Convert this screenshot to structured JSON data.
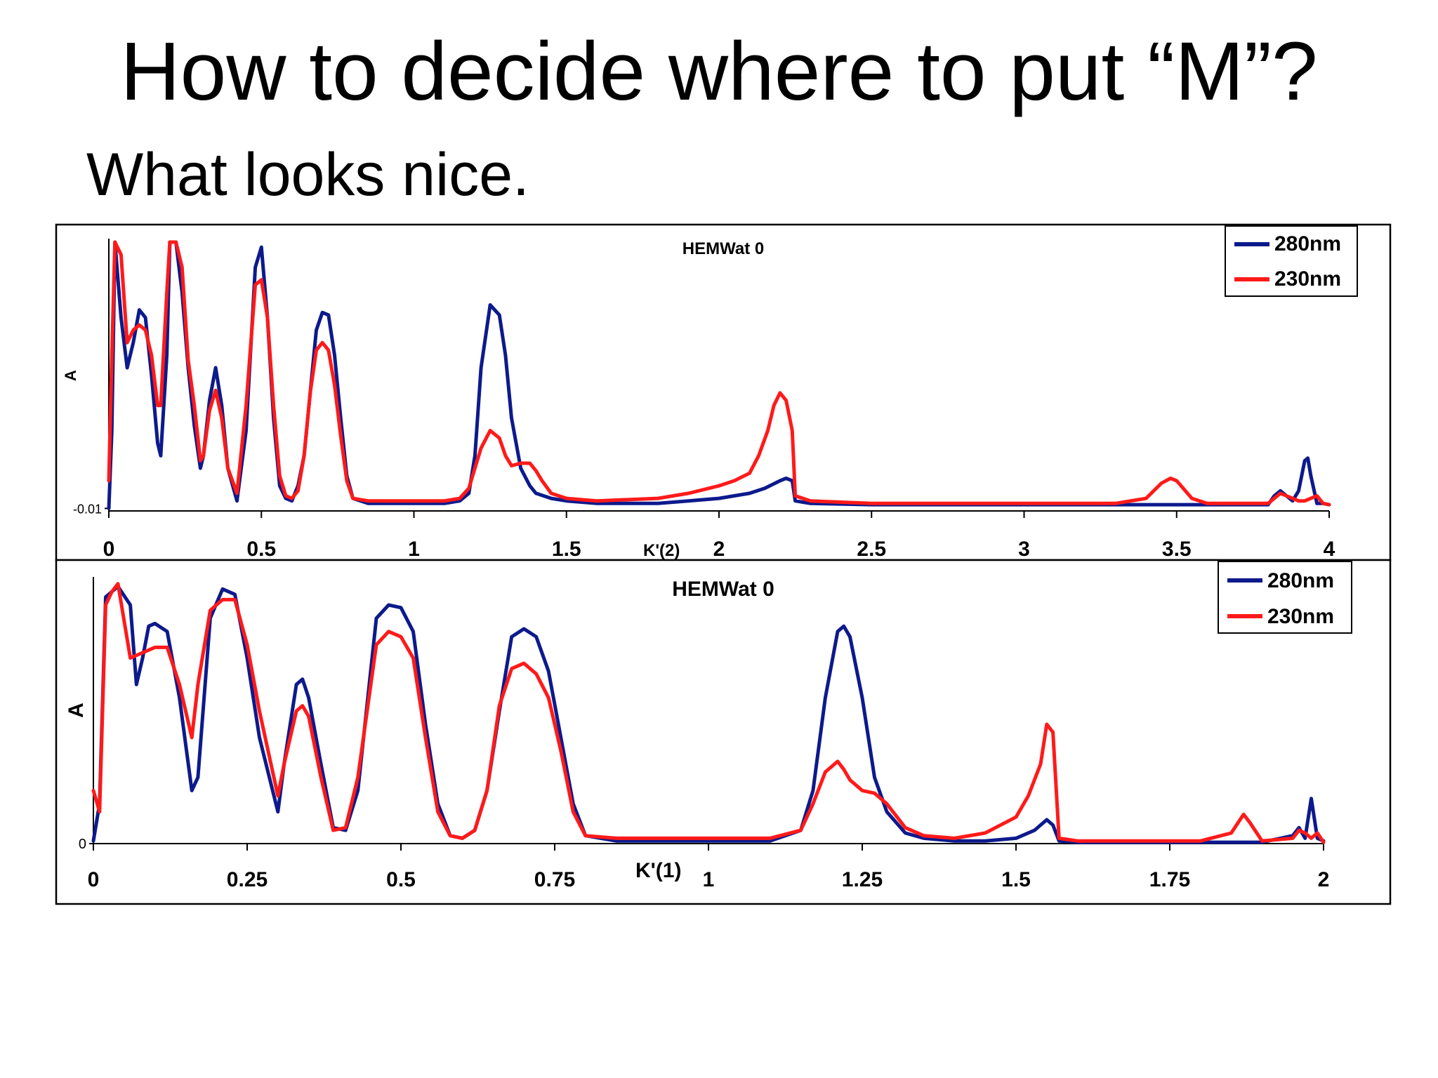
{
  "slide": {
    "title": "How to decide where to put “M”?",
    "subtitle": "What looks nice."
  },
  "colors": {
    "series_280": "#0d1a8c",
    "series_230": "#ff1a1a"
  },
  "chart_data": [
    {
      "type": "line",
      "title": "HEMWat 0",
      "xlabel": "K'(2)",
      "ylabel": "A",
      "xlim": [
        0,
        4
      ],
      "xticks": [
        "0",
        "0.5",
        "1",
        "1.5",
        "2",
        "2.5",
        "3",
        "3.5",
        "4"
      ],
      "yticks": [
        "-0.01"
      ],
      "grid": false,
      "legend_position": "top-right",
      "series": [
        {
          "name": "280nm",
          "color": "#0d1a8c",
          "x": [
            0,
            0.01,
            0.02,
            0.04,
            0.06,
            0.08,
            0.1,
            0.12,
            0.14,
            0.16,
            0.17,
            0.19,
            0.2,
            0.22,
            0.24,
            0.26,
            0.28,
            0.3,
            0.31,
            0.33,
            0.35,
            0.37,
            0.39,
            0.42,
            0.45,
            0.48,
            0.5,
            0.52,
            0.54,
            0.56,
            0.58,
            0.6,
            0.62,
            0.64,
            0.66,
            0.68,
            0.7,
            0.72,
            0.74,
            0.76,
            0.78,
            0.8,
            0.85,
            0.9,
            1.0,
            1.1,
            1.15,
            1.18,
            1.2,
            1.22,
            1.25,
            1.28,
            1.3,
            1.32,
            1.35,
            1.38,
            1.4,
            1.45,
            1.5,
            1.6,
            1.7,
            1.8,
            1.9,
            2.0,
            2.05,
            2.1,
            2.15,
            2.2,
            2.22,
            2.24,
            2.25,
            2.3,
            2.5,
            2.8,
            3.0,
            3.2,
            3.4,
            3.6,
            3.8,
            3.82,
            3.84,
            3.86,
            3.88,
            3.9,
            3.92,
            3.93,
            3.94,
            3.96,
            3.98,
            4.0
          ],
          "y": [
            -0.01,
            0.3,
            1.1,
            0.75,
            0.55,
            0.65,
            0.78,
            0.75,
            0.52,
            0.25,
            0.2,
            0.6,
            1.1,
            1.2,
            0.85,
            0.55,
            0.32,
            0.15,
            0.2,
            0.42,
            0.55,
            0.4,
            0.15,
            0.02,
            0.3,
            0.95,
            1.03,
            0.75,
            0.35,
            0.08,
            0.03,
            0.02,
            0.08,
            0.2,
            0.45,
            0.7,
            0.77,
            0.76,
            0.6,
            0.35,
            0.12,
            0.03,
            0.01,
            0.01,
            0.01,
            0.01,
            0.02,
            0.05,
            0.2,
            0.55,
            0.8,
            0.76,
            0.6,
            0.35,
            0.15,
            0.08,
            0.05,
            0.03,
            0.02,
            0.01,
            0.01,
            0.01,
            0.02,
            0.03,
            0.04,
            0.05,
            0.07,
            0.1,
            0.11,
            0.1,
            0.02,
            0.01,
            0.005,
            0.005,
            0.005,
            0.005,
            0.005,
            0.005,
            0.005,
            0.04,
            0.06,
            0.04,
            0.02,
            0.06,
            0.18,
            0.19,
            0.12,
            0.01,
            0.01,
            0.005
          ]
        },
        {
          "name": "230nm",
          "color": "#ff1a1a",
          "x": [
            0,
            0.01,
            0.02,
            0.04,
            0.06,
            0.08,
            0.1,
            0.12,
            0.14,
            0.16,
            0.17,
            0.19,
            0.2,
            0.22,
            0.24,
            0.26,
            0.28,
            0.3,
            0.31,
            0.33,
            0.35,
            0.37,
            0.39,
            0.42,
            0.45,
            0.48,
            0.5,
            0.52,
            0.54,
            0.56,
            0.58,
            0.6,
            0.62,
            0.64,
            0.66,
            0.68,
            0.7,
            0.72,
            0.74,
            0.76,
            0.78,
            0.8,
            0.85,
            0.9,
            1.0,
            1.1,
            1.15,
            1.18,
            1.2,
            1.22,
            1.25,
            1.28,
            1.3,
            1.32,
            1.35,
            1.38,
            1.4,
            1.42,
            1.45,
            1.5,
            1.6,
            1.8,
            1.9,
            2.0,
            2.05,
            2.1,
            2.13,
            2.16,
            2.18,
            2.2,
            2.22,
            2.24,
            2.25,
            2.3,
            2.5,
            3.0,
            3.3,
            3.4,
            3.45,
            3.48,
            3.5,
            3.55,
            3.6,
            3.8,
            3.82,
            3.84,
            3.86,
            3.88,
            3.9,
            3.92,
            3.94,
            3.96,
            3.98,
            4.0
          ],
          "y": [
            0.1,
            0.6,
            1.15,
            1.0,
            0.65,
            0.7,
            0.72,
            0.7,
            0.6,
            0.4,
            0.4,
            0.85,
            1.15,
            1.2,
            0.95,
            0.58,
            0.4,
            0.18,
            0.2,
            0.38,
            0.46,
            0.35,
            0.15,
            0.05,
            0.4,
            0.88,
            0.9,
            0.75,
            0.4,
            0.12,
            0.04,
            0.03,
            0.06,
            0.2,
            0.45,
            0.62,
            0.65,
            0.62,
            0.48,
            0.28,
            0.1,
            0.03,
            0.02,
            0.02,
            0.02,
            0.02,
            0.03,
            0.07,
            0.15,
            0.23,
            0.3,
            0.27,
            0.2,
            0.16,
            0.17,
            0.17,
            0.14,
            0.1,
            0.05,
            0.03,
            0.02,
            0.03,
            0.05,
            0.08,
            0.1,
            0.13,
            0.2,
            0.3,
            0.4,
            0.45,
            0.42,
            0.3,
            0.04,
            0.02,
            0.01,
            0.01,
            0.01,
            0.03,
            0.09,
            0.11,
            0.1,
            0.03,
            0.01,
            0.01,
            0.03,
            0.05,
            0.04,
            0.03,
            0.02,
            0.02,
            0.03,
            0.04,
            0.01,
            0.005
          ]
        }
      ]
    },
    {
      "type": "line",
      "title": "HEMWat 0",
      "xlabel": "K'(1)",
      "ylabel": "A",
      "xlim": [
        0,
        2
      ],
      "xticks": [
        "0",
        "0.25",
        "0.5",
        "0.75",
        "1",
        "1.25",
        "1.5",
        "1.75",
        "2"
      ],
      "yticks": [
        "0"
      ],
      "grid": false,
      "legend_position": "top-right",
      "series": [
        {
          "name": "280nm",
          "color": "#0d1a8c",
          "x": [
            0,
            0.01,
            0.02,
            0.03,
            0.04,
            0.06,
            0.07,
            0.08,
            0.09,
            0.1,
            0.12,
            0.14,
            0.16,
            0.17,
            0.19,
            0.21,
            0.23,
            0.25,
            0.27,
            0.3,
            0.31,
            0.33,
            0.34,
            0.35,
            0.37,
            0.39,
            0.41,
            0.43,
            0.46,
            0.48,
            0.5,
            0.52,
            0.54,
            0.56,
            0.58,
            0.6,
            0.62,
            0.64,
            0.66,
            0.68,
            0.7,
            0.72,
            0.74,
            0.76,
            0.78,
            0.8,
            0.85,
            0.9,
            1.0,
            1.1,
            1.15,
            1.17,
            1.19,
            1.21,
            1.22,
            1.23,
            1.25,
            1.27,
            1.29,
            1.32,
            1.35,
            1.4,
            1.45,
            1.5,
            1.53,
            1.55,
            1.56,
            1.57,
            1.6,
            1.7,
            1.8,
            1.9,
            1.95,
            1.96,
            1.97,
            1.98,
            1.99,
            2.0
          ],
          "y": [
            0.01,
            0.15,
            0.93,
            0.95,
            0.97,
            0.9,
            0.6,
            0.7,
            0.82,
            0.83,
            0.8,
            0.55,
            0.2,
            0.25,
            0.85,
            0.96,
            0.94,
            0.7,
            0.4,
            0.12,
            0.3,
            0.6,
            0.62,
            0.55,
            0.3,
            0.06,
            0.05,
            0.2,
            0.85,
            0.9,
            0.89,
            0.8,
            0.45,
            0.15,
            0.03,
            0.02,
            0.05,
            0.2,
            0.5,
            0.78,
            0.81,
            0.78,
            0.65,
            0.4,
            0.15,
            0.03,
            0.01,
            0.01,
            0.01,
            0.01,
            0.05,
            0.2,
            0.55,
            0.8,
            0.82,
            0.78,
            0.55,
            0.25,
            0.12,
            0.04,
            0.02,
            0.01,
            0.01,
            0.02,
            0.05,
            0.09,
            0.07,
            0.01,
            0.005,
            0.005,
            0.005,
            0.005,
            0.03,
            0.06,
            0.02,
            0.17,
            0.02,
            0.01
          ]
        },
        {
          "name": "230nm",
          "color": "#ff1a1a",
          "x": [
            0,
            0.01,
            0.02,
            0.03,
            0.04,
            0.06,
            0.08,
            0.1,
            0.12,
            0.14,
            0.16,
            0.17,
            0.19,
            0.21,
            0.23,
            0.25,
            0.27,
            0.3,
            0.31,
            0.33,
            0.34,
            0.35,
            0.37,
            0.39,
            0.41,
            0.43,
            0.46,
            0.48,
            0.5,
            0.52,
            0.54,
            0.56,
            0.58,
            0.6,
            0.62,
            0.64,
            0.66,
            0.68,
            0.7,
            0.72,
            0.74,
            0.76,
            0.78,
            0.8,
            0.85,
            0.9,
            1.0,
            1.1,
            1.15,
            1.17,
            1.19,
            1.21,
            1.22,
            1.23,
            1.25,
            1.27,
            1.29,
            1.32,
            1.35,
            1.4,
            1.45,
            1.5,
            1.52,
            1.54,
            1.55,
            1.56,
            1.57,
            1.6,
            1.7,
            1.8,
            1.85,
            1.87,
            1.88,
            1.9,
            1.95,
            1.96,
            1.97,
            1.98,
            1.99,
            2.0
          ],
          "y": [
            0.2,
            0.12,
            0.9,
            0.95,
            0.98,
            0.7,
            0.72,
            0.74,
            0.74,
            0.6,
            0.4,
            0.6,
            0.88,
            0.92,
            0.92,
            0.75,
            0.5,
            0.18,
            0.3,
            0.5,
            0.52,
            0.48,
            0.25,
            0.05,
            0.06,
            0.25,
            0.75,
            0.8,
            0.78,
            0.7,
            0.4,
            0.12,
            0.03,
            0.02,
            0.05,
            0.2,
            0.52,
            0.66,
            0.68,
            0.64,
            0.55,
            0.35,
            0.12,
            0.03,
            0.02,
            0.02,
            0.02,
            0.02,
            0.05,
            0.15,
            0.27,
            0.31,
            0.28,
            0.24,
            0.2,
            0.19,
            0.15,
            0.06,
            0.03,
            0.02,
            0.04,
            0.1,
            0.18,
            0.3,
            0.45,
            0.42,
            0.02,
            0.01,
            0.01,
            0.01,
            0.04,
            0.11,
            0.08,
            0.01,
            0.02,
            0.05,
            0.04,
            0.02,
            0.04,
            0.005
          ]
        }
      ]
    }
  ]
}
